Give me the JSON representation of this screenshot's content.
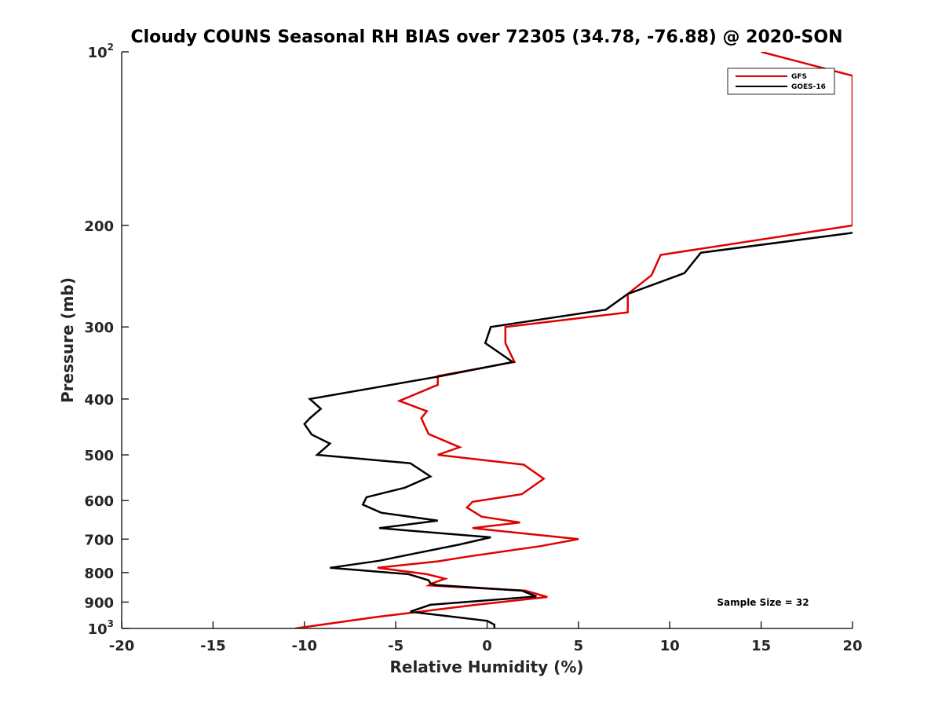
{
  "chart_data": {
    "type": "line",
    "title": "Cloudy COUNS Seasonal RH BIAS over 72305 (34.78, -76.88) @ 2020-SON",
    "xlabel": "Relative Humidity (%)",
    "ylabel": "Pressure (mb)",
    "xlim": [
      -20,
      20
    ],
    "ylim": [
      100,
      1000
    ],
    "yscale": "log",
    "y_reversed": true,
    "xticks": [
      -20,
      -15,
      -10,
      -5,
      0,
      5,
      10,
      15,
      20
    ],
    "xtick_labels": [
      "-20",
      "-15",
      "-10",
      "-5",
      "0",
      "5",
      "10",
      "15",
      "20"
    ],
    "yticks": [
      100,
      200,
      300,
      400,
      500,
      600,
      700,
      800,
      900,
      1000
    ],
    "ytick_labels": [
      {
        "base": "10",
        "exp": "2"
      },
      {
        "base": "200",
        "exp": ""
      },
      {
        "base": "300",
        "exp": ""
      },
      {
        "base": "400",
        "exp": ""
      },
      {
        "base": "500",
        "exp": ""
      },
      {
        "base": "600",
        "exp": ""
      },
      {
        "base": "700",
        "exp": ""
      },
      {
        "base": "800",
        "exp": ""
      },
      {
        "base": "900",
        "exp": ""
      },
      {
        "base": "10",
        "exp": "3"
      }
    ],
    "grid": false,
    "legend_position": "top-right",
    "annotation": "Sample Size = 32",
    "series": [
      {
        "name": "GFS",
        "color": "#e00000",
        "points": [
          [
            15,
            100
          ],
          [
            20,
            110
          ],
          [
            20,
            200
          ],
          [
            9.5,
            225
          ],
          [
            9,
            244
          ],
          [
            7.7,
            263
          ],
          [
            7.7,
            283
          ],
          [
            1,
            300
          ],
          [
            1,
            320
          ],
          [
            1.5,
            345
          ],
          [
            -2.7,
            365
          ],
          [
            -2.7,
            378
          ],
          [
            -4.8,
            403
          ],
          [
            -3.3,
            420
          ],
          [
            -3.6,
            432
          ],
          [
            -3.2,
            460
          ],
          [
            -1.5,
            485
          ],
          [
            -2.7,
            500
          ],
          [
            2,
            520
          ],
          [
            3.1,
            550
          ],
          [
            1.9,
            585
          ],
          [
            -0.8,
            603
          ],
          [
            -1.1,
            617
          ],
          [
            -0.3,
            640
          ],
          [
            1.8,
            655
          ],
          [
            -0.8,
            670
          ],
          [
            5,
            700
          ],
          [
            2.9,
            720
          ],
          [
            -1,
            750
          ],
          [
            -2.7,
            765
          ],
          [
            -6,
            785
          ],
          [
            -3.3,
            805
          ],
          [
            -2.3,
            820
          ],
          [
            -3,
            835
          ],
          [
            -3.2,
            842
          ],
          [
            2.1,
            860
          ],
          [
            3.3,
            882
          ],
          [
            -0.6,
            910
          ],
          [
            -6,
            955
          ],
          [
            -10.5,
            1000
          ]
        ]
      },
      {
        "name": "GOES-16",
        "color": "#000000",
        "points": [
          [
            20,
            206
          ],
          [
            11.7,
            223
          ],
          [
            10.8,
            242
          ],
          [
            7.7,
            263
          ],
          [
            6.5,
            280
          ],
          [
            0.2,
            300
          ],
          [
            -0.1,
            320
          ],
          [
            1.4,
            345
          ],
          [
            -2.5,
            365
          ],
          [
            -9.7,
            400
          ],
          [
            -9.1,
            416
          ],
          [
            -9.7,
            432
          ],
          [
            -10,
            442
          ],
          [
            -9.6,
            461
          ],
          [
            -8.6,
            478
          ],
          [
            -9.3,
            500
          ],
          [
            -4.2,
            517
          ],
          [
            -3.1,
            545
          ],
          [
            -4.5,
            570
          ],
          [
            -6.6,
            592
          ],
          [
            -6.8,
            610
          ],
          [
            -5.8,
            630
          ],
          [
            -2.7,
            650
          ],
          [
            -5.9,
            670
          ],
          [
            0.2,
            695
          ],
          [
            -1.5,
            715
          ],
          [
            -4.3,
            745
          ],
          [
            -5.9,
            763
          ],
          [
            -8.6,
            785
          ],
          [
            -4.3,
            805
          ],
          [
            -3.2,
            825
          ],
          [
            -3.1,
            835
          ],
          [
            -2.8,
            841
          ],
          [
            1.9,
            860
          ],
          [
            2.7,
            880
          ],
          [
            -3.1,
            910
          ],
          [
            -4.2,
            935
          ],
          [
            -3,
            945
          ],
          [
            0,
            970
          ],
          [
            0.4,
            985
          ],
          [
            0.4,
            1000
          ]
        ]
      }
    ]
  }
}
